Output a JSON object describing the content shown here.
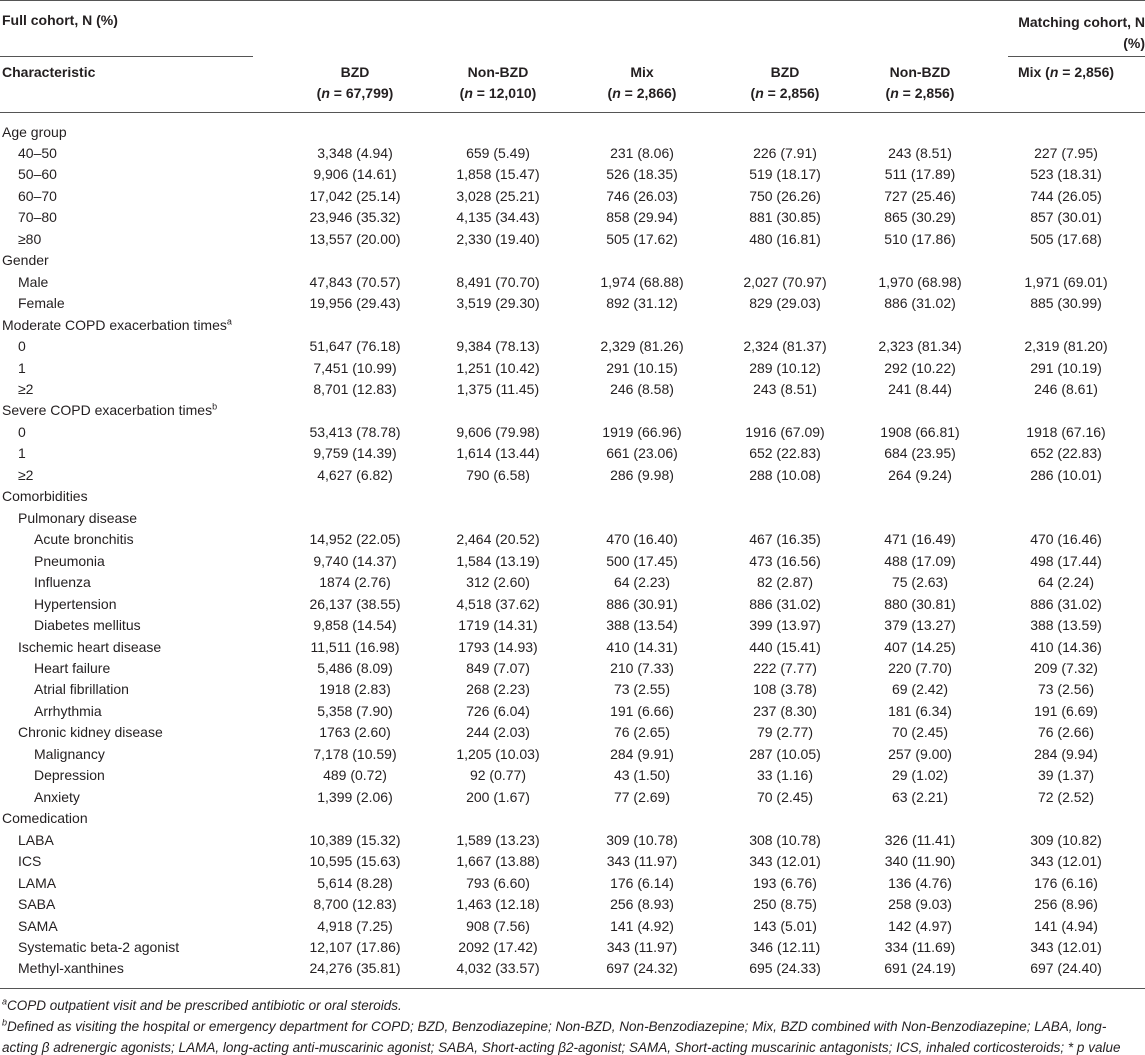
{
  "table": {
    "group_headers": [
      "Full cohort, N (%)",
      "Matching cohort, N (%)"
    ],
    "columns": [
      {
        "lines": [
          [
            "Characteristic"
          ]
        ]
      },
      {
        "lines": [
          [
            "BZD"
          ],
          [
            "(",
            {
              "text": "n",
              "italic": true
            },
            " = 67,799)"
          ]
        ]
      },
      {
        "lines": [
          [
            "Non-BZD"
          ],
          [
            "(",
            {
              "text": "n",
              "italic": true
            },
            " = 12,010)"
          ]
        ]
      },
      {
        "lines": [
          [
            "Mix"
          ],
          [
            "(",
            {
              "text": "n",
              "italic": true
            },
            " = 2,866)"
          ]
        ]
      },
      {
        "lines": [
          [
            "BZD"
          ],
          [
            "(",
            {
              "text": "n",
              "italic": true
            },
            " = 2,856)"
          ]
        ]
      },
      {
        "lines": [
          [
            "Non-BZD"
          ],
          [
            "(",
            {
              "text": "n",
              "italic": true
            },
            " = 2,856)"
          ]
        ]
      },
      {
        "lines": [
          [
            "Mix (",
            {
              "text": "n",
              "italic": true
            },
            " = 2,856)"
          ]
        ]
      }
    ],
    "rows": [
      {
        "label": "Age group",
        "rows": [
          {
            "label": "40–50",
            "values": [
              "3,348 (4.94)",
              "659 (5.49)",
              "231 (8.06)",
              "226 (7.91)",
              "243 (8.51)",
              "227 (7.95)"
            ]
          },
          {
            "label": "50–60",
            "values": [
              "9,906 (14.61)",
              "1,858 (15.47)",
              "526 (18.35)",
              "519 (18.17)",
              "511 (17.89)",
              "523 (18.31)"
            ]
          },
          {
            "label": "60–70",
            "values": [
              "17,042 (25.14)",
              "3,028 (25.21)",
              "746 (26.03)",
              "750 (26.26)",
              "727 (25.46)",
              "744 (26.05)"
            ]
          },
          {
            "label": "70–80",
            "values": [
              "23,946 (35.32)",
              "4,135 (34.43)",
              "858 (29.94)",
              "881 (30.85)",
              "865 (30.29)",
              "857 (30.01)"
            ]
          },
          {
            "label": "≥80",
            "values": [
              "13,557 (20.00)",
              "2,330 (19.40)",
              "505 (17.62)",
              "480 (16.81)",
              "510 (17.86)",
              "505 (17.68)"
            ]
          }
        ]
      },
      {
        "label": "Gender",
        "rows": [
          {
            "label": "Male",
            "values": [
              "47,843 (70.57)",
              "8,491 (70.70)",
              "1,974 (68.88)",
              "2,027 (70.97)",
              "1,970 (68.98)",
              "1,971 (69.01)"
            ]
          },
          {
            "label": "Female",
            "values": [
              "19,956 (29.43)",
              "3,519 (29.30)",
              "892 (31.12)",
              "829 (29.03)",
              "886 (31.02)",
              "885 (30.99)"
            ]
          }
        ]
      },
      {
        "label": "Moderate COPD exacerbation times",
        "sup": "a",
        "rows": [
          {
            "label": "0",
            "values": [
              "51,647 (76.18)",
              "9,384 (78.13)",
              "2,329 (81.26)",
              "2,324 (81.37)",
              "2,323 (81.34)",
              "2,319 (81.20)"
            ]
          },
          {
            "label": "1",
            "values": [
              "7,451 (10.99)",
              "1,251 (10.42)",
              "291 (10.15)",
              "289 (10.12)",
              "292 (10.22)",
              "291 (10.19)"
            ]
          },
          {
            "label": "≥2",
            "values": [
              "8,701 (12.83)",
              "1,375 (11.45)",
              "246 (8.58)",
              "243 (8.51)",
              "241 (8.44)",
              "246 (8.61)"
            ]
          }
        ]
      },
      {
        "label": "Severe COPD exacerbation times",
        "sup": "b",
        "rows": [
          {
            "label": "0",
            "values": [
              "53,413 (78.78)",
              "9,606 (79.98)",
              "1919 (66.96)",
              "1916 (67.09)",
              "1908 (66.81)",
              "1918 (67.16)"
            ]
          },
          {
            "label": "1",
            "values": [
              "9,759 (14.39)",
              "1,614 (13.44)",
              "661 (23.06)",
              "652 (22.83)",
              "684 (23.95)",
              "652 (22.83)"
            ]
          },
          {
            "label": "≥2",
            "values": [
              "4,627 (6.82)",
              "790 (6.58)",
              "286 (9.98)",
              "288 (10.08)",
              "264 (9.24)",
              "286 (10.01)"
            ]
          }
        ]
      },
      {
        "label": "Comorbidities",
        "rows": [
          {
            "label": "Pulmonary disease",
            "rows": [
              {
                "label": "Acute bronchitis",
                "values": [
                  "14,952 (22.05)",
                  "2,464 (20.52)",
                  "470 (16.40)",
                  "467 (16.35)",
                  "471 (16.49)",
                  "470 (16.46)"
                ]
              },
              {
                "label": "Pneumonia",
                "values": [
                  "9,740 (14.37)",
                  "1,584 (13.19)",
                  "500 (17.45)",
                  "473 (16.56)",
                  "488 (17.09)",
                  "498 (17.44)"
                ]
              },
              {
                "label": "Influenza",
                "values": [
                  "1874 (2.76)",
                  "312 (2.60)",
                  "64 (2.23)",
                  "82 (2.87)",
                  "75 (2.63)",
                  "64 (2.24)"
                ]
              },
              {
                "label": "Hypertension",
                "values": [
                  "26,137 (38.55)",
                  "4,518 (37.62)",
                  "886 (30.91)",
                  "886 (31.02)",
                  "880 (30.81)",
                  "886 (31.02)"
                ]
              },
              {
                "label": "Diabetes mellitus",
                "values": [
                  "9,858 (14.54)",
                  "1719 (14.31)",
                  "388 (13.54)",
                  "399 (13.97)",
                  "379 (13.27)",
                  "388 (13.59)"
                ]
              }
            ]
          },
          {
            "label": "Ischemic heart disease",
            "values": [
              "11,511 (16.98)",
              "1793 (14.93)",
              "410 (14.31)",
              "440 (15.41)",
              "407 (14.25)",
              "410 (14.36)"
            ],
            "rows": [
              {
                "label": "Heart failure",
                "values": [
                  "5,486 (8.09)",
                  "849 (7.07)",
                  "210 (7.33)",
                  "222 (7.77)",
                  "220 (7.70)",
                  "209 (7.32)"
                ]
              },
              {
                "label": "Atrial fibrillation",
                "values": [
                  "1918 (2.83)",
                  "268 (2.23)",
                  "73 (2.55)",
                  "108 (3.78)",
                  "69 (2.42)",
                  "73 (2.56)"
                ]
              },
              {
                "label": "Arrhythmia",
                "values": [
                  "5,358 (7.90)",
                  "726 (6.04)",
                  "191 (6.66)",
                  "237 (8.30)",
                  "181 (6.34)",
                  "191 (6.69)"
                ]
              }
            ]
          },
          {
            "label": "Chronic kidney disease",
            "values": [
              "1763 (2.60)",
              "244 (2.03)",
              "76 (2.65)",
              "79 (2.77)",
              "70 (2.45)",
              "76 (2.66)"
            ],
            "rows": [
              {
                "label": "Malignancy",
                "values": [
                  "7,178 (10.59)",
                  "1,205 (10.03)",
                  "284 (9.91)",
                  "287 (10.05)",
                  "257 (9.00)",
                  "284 (9.94)"
                ]
              },
              {
                "label": "Depression",
                "values": [
                  "489 (0.72)",
                  "92 (0.77)",
                  "43 (1.50)",
                  "33 (1.16)",
                  "29 (1.02)",
                  "39 (1.37)"
                ]
              },
              {
                "label": "Anxiety",
                "values": [
                  "1,399 (2.06)",
                  "200 (1.67)",
                  "77 (2.69)",
                  "70 (2.45)",
                  "63 (2.21)",
                  "72 (2.52)"
                ]
              }
            ]
          }
        ]
      },
      {
        "label": "Comedication",
        "rows": [
          {
            "label": "LABA",
            "values": [
              "10,389 (15.32)",
              "1,589 (13.23)",
              "309 (10.78)",
              "308 (10.78)",
              "326 (11.41)",
              "309 (10.82)"
            ]
          },
          {
            "label": "ICS",
            "values": [
              "10,595 (15.63)",
              "1,667 (13.88)",
              "343 (11.97)",
              "343 (12.01)",
              "340 (11.90)",
              "343 (12.01)"
            ]
          },
          {
            "label": "LAMA",
            "values": [
              "5,614 (8.28)",
              "793 (6.60)",
              "176 (6.14)",
              "193 (6.76)",
              "136 (4.76)",
              "176 (6.16)"
            ]
          },
          {
            "label": "SABA",
            "values": [
              "8,700 (12.83)",
              "1,463 (12.18)",
              "256 (8.93)",
              "250 (8.75)",
              "258 (9.03)",
              "256 (8.96)"
            ]
          },
          {
            "label": "SAMA",
            "values": [
              "4,918 (7.25)",
              "908 (7.56)",
              "141 (4.92)",
              "143 (5.01)",
              "142 (4.97)",
              "141 (4.94)"
            ]
          },
          {
            "label": "Systematic beta-2 agonist",
            "values": [
              "12,107 (17.86)",
              "2092 (17.42)",
              "343 (11.97)",
              "346 (12.11)",
              "334 (11.69)",
              "343 (12.01)"
            ]
          },
          {
            "label": "Methyl-xanthines",
            "values": [
              "24,276 (35.81)",
              "4,032 (33.57)",
              "697 (24.32)",
              "695 (24.33)",
              "691 (24.19)",
              "697 (24.40)"
            ]
          }
        ]
      }
    ],
    "footnotes": [
      {
        "mark": "a",
        "text": "COPD outpatient visit and be prescribed antibiotic or oral steroids."
      },
      {
        "mark": "b",
        "text": "Defined as visiting the hospital or emergency department for COPD; BZD, Benzodiazepine; Non-BZD, Non-Benzodiazepine; Mix, BZD combined with Non-Benzodiazepine; LABA, long-acting β adrenergic agonists; LAMA, long-acting anti-muscarinic agonist; SABA, Short-acting β2-agonist; SAMA, Short-acting muscarinic antagonists; ICS, inhaled corticosteroids; * p value < 0.05."
      }
    ]
  }
}
